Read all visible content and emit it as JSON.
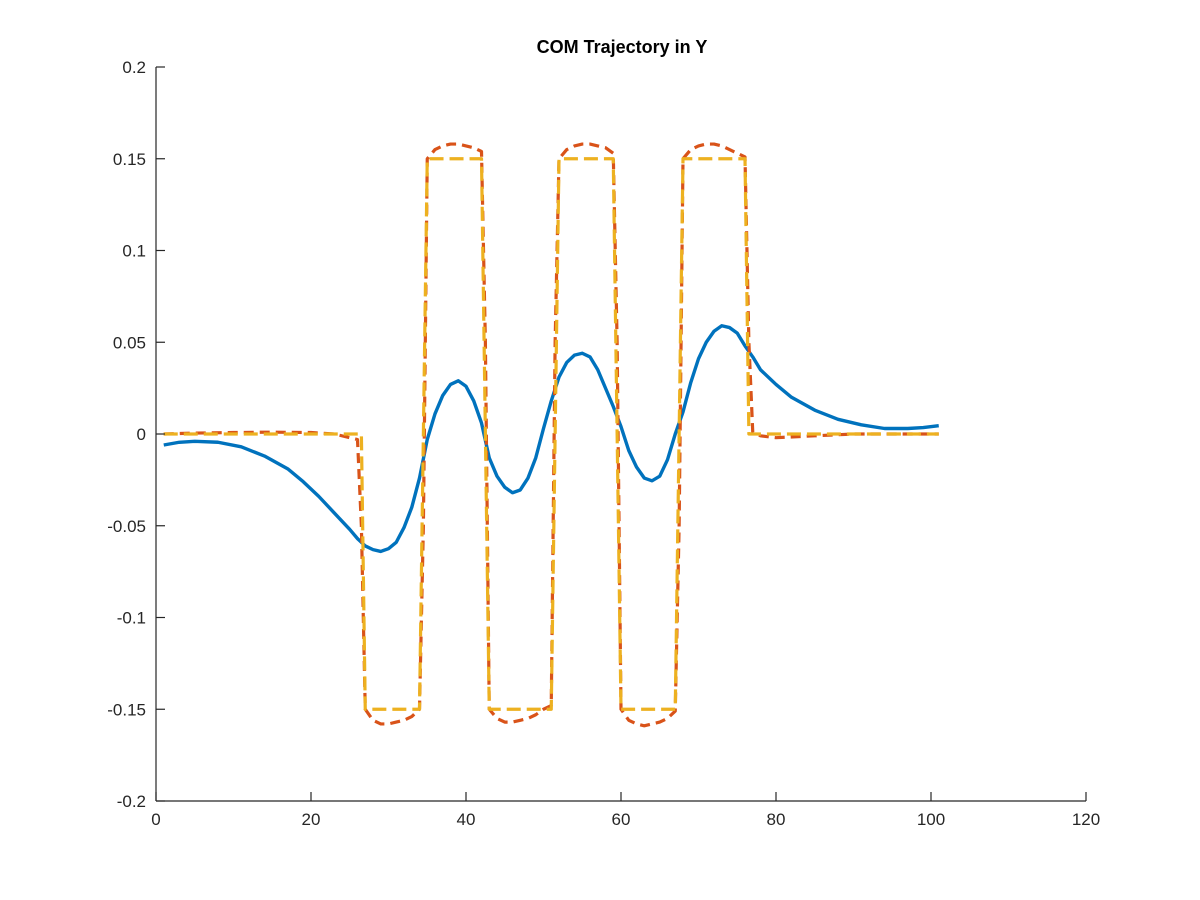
{
  "chart_data": {
    "type": "line",
    "title": "COM Trajectory in Y",
    "xlabel": "",
    "ylabel": "",
    "xlim": [
      0,
      120
    ],
    "ylim": [
      -0.2,
      0.2
    ],
    "grid": false,
    "legend": "none",
    "xticks": [
      0,
      20,
      40,
      60,
      80,
      100,
      120
    ],
    "xtick_labels": [
      "0",
      "20",
      "40",
      "60",
      "80",
      "100",
      "120"
    ],
    "yticks": [
      -0.2,
      -0.15,
      -0.1,
      -0.05,
      0,
      0.05,
      0.1,
      0.15,
      0.2
    ],
    "ytick_labels": [
      "-0.2",
      "-0.15",
      "-0.1",
      "-0.05",
      "0",
      "0.05",
      "0.1",
      "0.15",
      "0.2"
    ],
    "series": [
      {
        "color": "#0072bd",
        "style": "solid",
        "x": [
          1,
          3,
          5,
          8,
          11,
          14,
          17,
          19,
          21,
          23,
          25,
          26,
          27,
          28,
          29,
          30,
          31,
          32,
          33,
          34,
          35,
          36,
          37,
          38,
          39,
          40,
          41,
          42,
          43,
          44,
          45,
          46,
          47,
          48,
          49,
          50,
          51,
          52,
          53,
          54,
          55,
          56,
          57,
          58,
          59,
          60,
          61,
          62,
          63,
          64,
          65,
          66,
          67,
          68,
          69,
          70,
          71,
          72,
          73,
          74,
          75,
          76,
          77,
          78,
          80,
          82,
          85,
          88,
          91,
          94,
          97,
          99,
          101
        ],
        "y": [
          -0.006,
          -0.0045,
          -0.004,
          -0.0045,
          -0.007,
          -0.012,
          -0.019,
          -0.026,
          -0.034,
          -0.043,
          -0.052,
          -0.057,
          -0.061,
          -0.063,
          -0.064,
          -0.0625,
          -0.059,
          -0.051,
          -0.04,
          -0.024,
          -0.003,
          0.011,
          0.021,
          0.027,
          0.029,
          0.026,
          0.018,
          0.006,
          -0.013,
          -0.023,
          -0.029,
          -0.032,
          -0.0305,
          -0.024,
          -0.013,
          0.003,
          0.018,
          0.031,
          0.039,
          0.043,
          0.044,
          0.042,
          0.035,
          0.025,
          0.015,
          0.004,
          -0.009,
          -0.018,
          -0.024,
          -0.0255,
          -0.023,
          -0.014,
          0.0,
          0.012,
          0.028,
          0.041,
          0.05,
          0.056,
          0.059,
          0.058,
          0.055,
          0.048,
          0.042,
          0.035,
          0.027,
          0.02,
          0.013,
          0.008,
          0.005,
          0.003,
          0.003,
          0.0035,
          0.0045
        ]
      },
      {
        "color": "#d95319",
        "style": "dashed",
        "x": [
          1,
          5,
          10,
          15,
          20,
          23,
          25,
          26,
          26.5,
          27,
          28,
          29,
          30,
          31,
          32,
          33,
          34,
          34.5,
          35,
          36,
          37,
          38,
          39,
          40,
          41,
          42,
          42.5,
          43,
          44,
          45,
          46,
          47,
          48,
          49,
          50,
          51,
          51.5,
          52,
          53,
          54,
          55,
          56,
          57,
          58,
          59,
          59.5,
          60,
          61,
          62,
          63,
          64,
          65,
          66,
          67,
          67.5,
          68,
          69,
          70,
          71,
          72,
          73,
          74,
          75,
          76,
          76.5,
          77,
          78,
          80,
          85,
          90,
          95,
          101
        ],
        "y": [
          0.0,
          0.0005,
          0.0008,
          0.001,
          0.0008,
          0.0,
          -0.002,
          -0.003,
          -0.05,
          -0.15,
          -0.156,
          -0.158,
          -0.158,
          -0.157,
          -0.156,
          -0.154,
          -0.15,
          -0.05,
          0.15,
          0.155,
          0.157,
          0.158,
          0.158,
          0.157,
          0.156,
          0.154,
          0.05,
          -0.15,
          -0.155,
          -0.157,
          -0.157,
          -0.156,
          -0.155,
          -0.153,
          -0.15,
          -0.148,
          0.05,
          0.15,
          0.155,
          0.157,
          0.158,
          0.158,
          0.157,
          0.156,
          0.153,
          0.05,
          -0.15,
          -0.156,
          -0.158,
          -0.159,
          -0.158,
          -0.157,
          -0.155,
          -0.151,
          -0.05,
          0.15,
          0.155,
          0.157,
          0.158,
          0.158,
          0.157,
          0.155,
          0.153,
          0.151,
          0.05,
          0.001,
          -0.001,
          -0.002,
          -0.001,
          0.0,
          0.0,
          0.0
        ]
      },
      {
        "color": "#edb120",
        "style": "dashed",
        "x": [
          1,
          5,
          10,
          15,
          20,
          25,
          26,
          26.5,
          27,
          28,
          30,
          32,
          34,
          34.5,
          35,
          36,
          38,
          40,
          42,
          42.5,
          43,
          44,
          46,
          48,
          50,
          51,
          51.5,
          52,
          53,
          55,
          57,
          59,
          59.5,
          60,
          61,
          63,
          65,
          67,
          67.5,
          68,
          69,
          71,
          73,
          75,
          76,
          76.5,
          77,
          78,
          80,
          85,
          90,
          95,
          101
        ],
        "y": [
          0.0,
          0.0,
          0.0,
          0.0,
          0.0,
          0.0,
          0.0,
          0.0,
          -0.15,
          -0.15,
          -0.15,
          -0.15,
          -0.15,
          0.0,
          0.15,
          0.15,
          0.15,
          0.15,
          0.15,
          0.0,
          -0.15,
          -0.15,
          -0.15,
          -0.15,
          -0.15,
          -0.15,
          0.0,
          0.15,
          0.15,
          0.15,
          0.15,
          0.15,
          0.0,
          -0.15,
          -0.15,
          -0.15,
          -0.15,
          -0.15,
          0.0,
          0.15,
          0.15,
          0.15,
          0.15,
          0.15,
          0.15,
          0.0,
          0.0,
          0.0,
          0.0,
          0.0,
          0.0,
          0.0,
          0.0
        ]
      }
    ]
  }
}
